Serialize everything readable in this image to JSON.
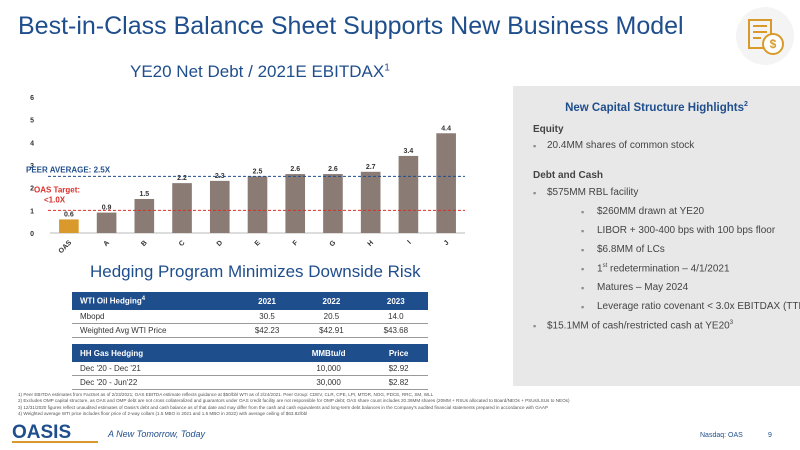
{
  "header": {
    "title": "Best-in-Class Balance Sheet Supports New Business Model",
    "icon": "money-gear-icon"
  },
  "chart_section": {
    "title": "YE20 Net Debt / 2021E EBITDAX",
    "title_sup": "1"
  },
  "chart_data": {
    "type": "bar",
    "categories": [
      "OAS",
      "A",
      "B",
      "C",
      "D",
      "E",
      "F",
      "G",
      "H",
      "I",
      "J"
    ],
    "values": [
      0.6,
      0.9,
      1.5,
      2.2,
      2.3,
      2.5,
      2.6,
      2.6,
      2.7,
      3.4,
      4.4
    ],
    "value_labels": [
      "0.6",
      "0.9",
      "1.5",
      "2.2",
      "2.3",
      "2.5",
      "2.6",
      "2.6",
      "2.7",
      "3.4",
      "4.4"
    ],
    "ylim": [
      0,
      6
    ],
    "yticks": [
      "0",
      "1",
      "2",
      "3",
      "4",
      "5",
      "6"
    ],
    "highlight_color": "#d99a2b",
    "bar_color": "#8a7b74",
    "reference_lines": [
      {
        "label": "PEER AVERAGE: 2.5X",
        "value": 2.5,
        "color": "#1f4e8c"
      },
      {
        "label_line1": "OAS Target:",
        "label_line2": "<1.0X",
        "value": 1.0,
        "color": "#d9302a"
      }
    ]
  },
  "hedging": {
    "title": "Hedging Program Minimizes Downside Risk",
    "oil_table": {
      "headers": [
        "WTI Oil Hedging",
        "2021",
        "2022",
        "2023"
      ],
      "header_sup": "4",
      "rows": [
        [
          "Mbopd",
          "30.5",
          "20.5",
          "14.0"
        ],
        [
          "Weighted Avg WTI Price",
          "$42.23",
          "$42.91",
          "$43.68"
        ]
      ]
    },
    "gas_table": {
      "headers": [
        "HH Gas Hedging",
        "MMBtu/d",
        "Price"
      ],
      "rows": [
        [
          "Dec '20 - Dec '21",
          "10,000",
          "$2.92"
        ],
        [
          "Dec '20 - Jun'22",
          "30,000",
          "$2.82"
        ]
      ]
    }
  },
  "panel": {
    "title": "New Capital Structure Highlights",
    "title_sup": "2",
    "equity_label": "Equity",
    "equity_items": [
      "20.4MM shares of common stock"
    ],
    "debt_label": "Debt and Cash",
    "rbl": "$575MM RBL facility",
    "sub_items": [
      "$260MM drawn at YE20",
      "LIBOR + 300-400 bps with 100 bps floor",
      "$6.8MM of LCs",
      "1",
      "Matures – May 2024",
      "Leverage ratio covenant < 3.0x EBITDAX (TTM)"
    ],
    "redet_sup": "st",
    "redet_rest": " redetermination – 4/1/2021",
    "cash": "$15.1MM of cash/restricted cash at YE20",
    "cash_sup": "3"
  },
  "footnotes": [
    "1)  Peer EBITDA estimates from FactSet as of 2/23/2021; OAS EBITDA estimate reflects guidance at $50/bbl WTI as of 2/24/2021. Peer Group: CDEV, CLR, CPE, LPI, MTDR, NOG, PDCE, RRC, SM, WLL",
    "2)  Excludes OMP capital structure, as OAS and OMP debt are not cross collateralized and guarantors under OAS credit facility are not responsible for OMP debt; OAS share count includes 20.36MM shares (20MM + RSUs allocated to Board/NEOs + PSUs/LSUs to NEOs)",
    "3)  12/31/2020 figures reflect unaudited estimates of Oasis's debt and cash balance as of that date and may differ from the cash and cash equivalents and long-term debt balances in the Company's audited financial statements prepared in accordance with GAAP",
    "4)  Weighted average WTI price includes floor price of 2-way collars (1.5 MBO in 2021 and 1.5 MBO in 2022) with average ceiling of $63.82/bbl"
  ],
  "footer": {
    "logo_text": "OASIS",
    "tagline": "A New Tomorrow, Today",
    "ticker": "Nasdaq: OAS",
    "page": "9"
  }
}
